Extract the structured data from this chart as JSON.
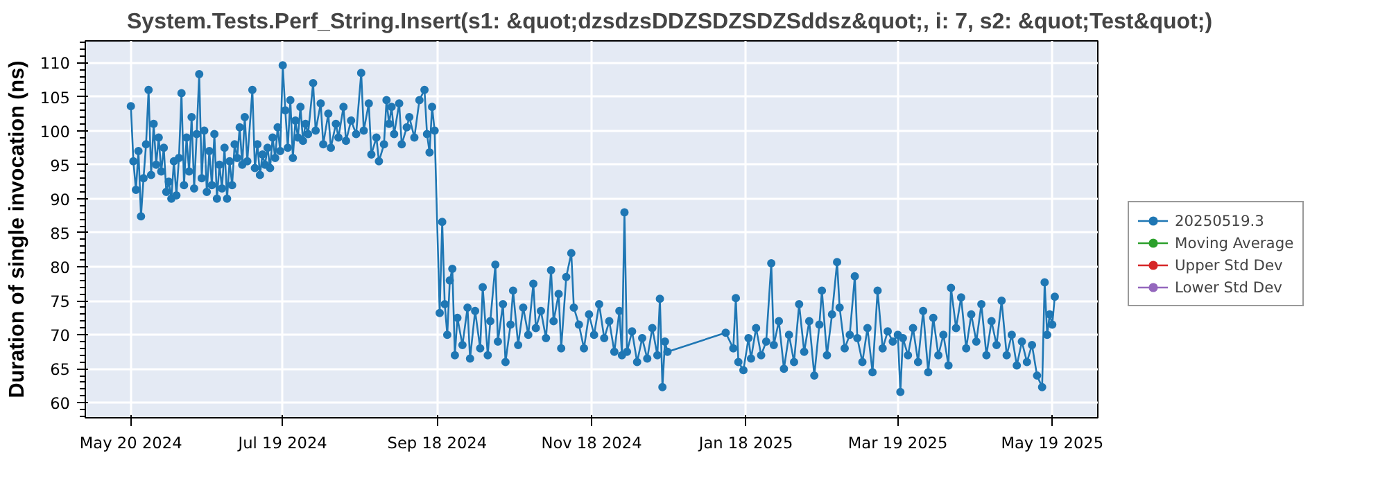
{
  "chart_data": {
    "type": "line",
    "title": "System.Tests.Perf_String.Insert(s1: &quot;dzsdzsDDZSDZSDZSddsz&quot;, i: 7, s2: &quot;Test&quot;)",
    "ylabel": "Duration of single invocation (ns)",
    "x": [
      "2024-05-20",
      "2024-05-21",
      "2024-05-22",
      "2024-05-23",
      "2024-05-24",
      "2024-05-25",
      "2024-05-26",
      "2024-05-27",
      "2024-05-28",
      "2024-05-29",
      "2024-05-30",
      "2024-05-31",
      "2024-06-01",
      "2024-06-02",
      "2024-06-03",
      "2024-06-04",
      "2024-06-05",
      "2024-06-06",
      "2024-06-07",
      "2024-06-08",
      "2024-06-09",
      "2024-06-10",
      "2024-06-11",
      "2024-06-12",
      "2024-06-13",
      "2024-06-14",
      "2024-06-15",
      "2024-06-16",
      "2024-06-17",
      "2024-06-18",
      "2024-06-19",
      "2024-06-20",
      "2024-06-21",
      "2024-06-22",
      "2024-06-23",
      "2024-06-24",
      "2024-06-25",
      "2024-06-26",
      "2024-06-27",
      "2024-06-28",
      "2024-06-29",
      "2024-06-30",
      "2024-07-01",
      "2024-07-02",
      "2024-07-03",
      "2024-07-04",
      "2024-07-05",
      "2024-07-07",
      "2024-07-08",
      "2024-07-09",
      "2024-07-10",
      "2024-07-11",
      "2024-07-12",
      "2024-07-13",
      "2024-07-14",
      "2024-07-15",
      "2024-07-16",
      "2024-07-17",
      "2024-07-18",
      "2024-07-19",
      "2024-07-20",
      "2024-07-21",
      "2024-07-22",
      "2024-07-23",
      "2024-07-24",
      "2024-07-25",
      "2024-07-26",
      "2024-07-27",
      "2024-07-28",
      "2024-07-29",
      "2024-07-31",
      "2024-08-01",
      "2024-08-03",
      "2024-08-04",
      "2024-08-06",
      "2024-08-07",
      "2024-08-09",
      "2024-08-10",
      "2024-08-12",
      "2024-08-13",
      "2024-08-15",
      "2024-08-17",
      "2024-08-19",
      "2024-08-20",
      "2024-08-22",
      "2024-08-23",
      "2024-08-25",
      "2024-08-26",
      "2024-08-28",
      "2024-08-29",
      "2024-08-30",
      "2024-08-31",
      "2024-09-01",
      "2024-09-03",
      "2024-09-04",
      "2024-09-06",
      "2024-09-07",
      "2024-09-09",
      "2024-09-11",
      "2024-09-13",
      "2024-09-14",
      "2024-09-15",
      "2024-09-16",
      "2024-09-17",
      "2024-09-19",
      "2024-09-20",
      "2024-09-21",
      "2024-09-22",
      "2024-09-23",
      "2024-09-24",
      "2024-09-25",
      "2024-09-26",
      "2024-09-28",
      "2024-09-30",
      "2024-10-01",
      "2024-10-03",
      "2024-10-05",
      "2024-10-06",
      "2024-10-08",
      "2024-10-09",
      "2024-10-11",
      "2024-10-12",
      "2024-10-14",
      "2024-10-15",
      "2024-10-17",
      "2024-10-18",
      "2024-10-20",
      "2024-10-22",
      "2024-10-24",
      "2024-10-26",
      "2024-10-27",
      "2024-10-29",
      "2024-10-31",
      "2024-11-02",
      "2024-11-03",
      "2024-11-05",
      "2024-11-06",
      "2024-11-08",
      "2024-11-10",
      "2024-11-11",
      "2024-11-13",
      "2024-11-15",
      "2024-11-17",
      "2024-11-19",
      "2024-11-21",
      "2024-11-23",
      "2024-11-25",
      "2024-11-27",
      "2024-11-29",
      "2024-11-30",
      "2024-12-01",
      "2024-12-02",
      "2024-12-04",
      "2024-12-06",
      "2024-12-08",
      "2024-12-10",
      "2024-12-12",
      "2024-12-14",
      "2024-12-15",
      "2024-12-16",
      "2024-12-17",
      "2024-12-18",
      "2025-01-10",
      "2025-01-13",
      "2025-01-14",
      "2025-01-15",
      "2025-01-17",
      "2025-01-19",
      "2025-01-20",
      "2025-01-22",
      "2025-01-24",
      "2025-01-26",
      "2025-01-28",
      "2025-01-29",
      "2025-01-31",
      "2025-02-02",
      "2025-02-04",
      "2025-02-06",
      "2025-02-08",
      "2025-02-10",
      "2025-02-12",
      "2025-02-14",
      "2025-02-16",
      "2025-02-17",
      "2025-02-19",
      "2025-02-21",
      "2025-02-23",
      "2025-02-24",
      "2025-02-26",
      "2025-02-28",
      "2025-03-02",
      "2025-03-03",
      "2025-03-05",
      "2025-03-07",
      "2025-03-09",
      "2025-03-11",
      "2025-03-13",
      "2025-03-15",
      "2025-03-17",
      "2025-03-19",
      "2025-03-20",
      "2025-03-21",
      "2025-03-23",
      "2025-03-25",
      "2025-03-27",
      "2025-03-29",
      "2025-03-31",
      "2025-04-02",
      "2025-04-04",
      "2025-04-06",
      "2025-04-08",
      "2025-04-09",
      "2025-04-11",
      "2025-04-13",
      "2025-04-15",
      "2025-04-17",
      "2025-04-19",
      "2025-04-21",
      "2025-04-23",
      "2025-04-25",
      "2025-04-27",
      "2025-04-29",
      "2025-05-01",
      "2025-05-03",
      "2025-05-05",
      "2025-05-07",
      "2025-05-09",
      "2025-05-11",
      "2025-05-13",
      "2025-05-15",
      "2025-05-16",
      "2025-05-17",
      "2025-05-18",
      "2025-05-19",
      "2025-05-20"
    ],
    "series": [
      {
        "name": "20250519.3",
        "color": "#1f77b4",
        "values": [
          103.6,
          95.5,
          91.3,
          97.0,
          87.4,
          93.0,
          98.0,
          106.0,
          93.5,
          101.0,
          95.0,
          99.0,
          94.0,
          97.5,
          91.0,
          92.5,
          90.0,
          95.5,
          90.5,
          96.0,
          105.5,
          92.0,
          99.0,
          94.0,
          102.0,
          91.5,
          99.5,
          108.3,
          93.0,
          100.0,
          91.0,
          97.0,
          92.0,
          99.5,
          90.0,
          95.0,
          91.5,
          97.5,
          90.0,
          95.5,
          92.0,
          98.0,
          96.0,
          100.5,
          95.0,
          102.0,
          95.5,
          106.0,
          94.5,
          98.0,
          93.5,
          96.5,
          95.0,
          97.5,
          94.5,
          99.0,
          96.0,
          100.5,
          97.0,
          109.6,
          103.0,
          97.5,
          104.5,
          96.0,
          101.5,
          99.0,
          103.5,
          98.5,
          101.0,
          99.5,
          107.0,
          100.0,
          104.0,
          98.0,
          102.5,
          97.5,
          101.0,
          99.0,
          103.5,
          98.5,
          101.5,
          99.5,
          108.5,
          100.0,
          104.0,
          96.5,
          99.0,
          95.5,
          98.0,
          104.5,
          101.0,
          103.5,
          99.5,
          104.0,
          98.0,
          100.5,
          102.0,
          99.0,
          104.5,
          106.0,
          99.5,
          96.8,
          103.5,
          100.0,
          73.2,
          86.6,
          74.5,
          70.0,
          78.0,
          79.7,
          67.0,
          72.5,
          68.5,
          74.0,
          66.5,
          73.5,
          68.0,
          77.0,
          67.0,
          72.0,
          80.3,
          69.0,
          74.5,
          66.0,
          71.5,
          76.5,
          68.5,
          74.0,
          70.0,
          77.5,
          71.0,
          73.5,
          69.5,
          79.5,
          72.0,
          76.0,
          68.0,
          78.5,
          82.0,
          74.0,
          71.5,
          68.0,
          73.0,
          70.0,
          74.5,
          69.5,
          72.0,
          67.5,
          73.5,
          67.0,
          88.0,
          67.5,
          70.5,
          66.0,
          69.5,
          66.5,
          71.0,
          67.0,
          75.3,
          62.3,
          69.0,
          67.5,
          70.3,
          68.0,
          75.4,
          66.0,
          64.8,
          69.5,
          66.5,
          71.0,
          67.0,
          69.0,
          80.5,
          68.5,
          72.0,
          65.0,
          70.0,
          66.0,
          74.5,
          67.5,
          72.0,
          64.0,
          71.5,
          76.5,
          67.0,
          73.0,
          80.7,
          74.0,
          68.0,
          70.0,
          78.6,
          69.5,
          66.0,
          71.0,
          64.5,
          76.5,
          68.0,
          70.5,
          69.0,
          70.0,
          61.6,
          69.5,
          67.0,
          71.0,
          66.0,
          73.5,
          64.5,
          72.5,
          67.0,
          70.0,
          65.5,
          76.9,
          71.0,
          75.5,
          68.0,
          73.0,
          69.0,
          74.5,
          67.0,
          72.0,
          68.5,
          75.0,
          67.0,
          70.0,
          65.5,
          69.0,
          66.0,
          68.5,
          64.0,
          62.3,
          77.7,
          70.0,
          73.0,
          71.5,
          75.6
        ]
      },
      {
        "name": "Moving Average",
        "color": "#2ca02c",
        "values": [
          null,
          null,
          null,
          null,
          null,
          null,
          null,
          null,
          null,
          null,
          null,
          null,
          null,
          null,
          null,
          null,
          null,
          null,
          null,
          null,
          null,
          null,
          null,
          null,
          null,
          null,
          null,
          null,
          null,
          null,
          null,
          null,
          null,
          null,
          null,
          null,
          null,
          null,
          null,
          null,
          null,
          null,
          null,
          null,
          null,
          null,
          null,
          null,
          null,
          null,
          null,
          null,
          null,
          null,
          null,
          null,
          null,
          null,
          null,
          null,
          null,
          null,
          null,
          null,
          null,
          null,
          null,
          null,
          null,
          null,
          null,
          null,
          null,
          null,
          null,
          null,
          null,
          null,
          null,
          null,
          null,
          null,
          null,
          null,
          null,
          null,
          null,
          null,
          null,
          null,
          null,
          null,
          null,
          null,
          null,
          null,
          null,
          null,
          null,
          null,
          null,
          null,
          null,
          null,
          null,
          null,
          null,
          null,
          null,
          null,
          null,
          null,
          null,
          null,
          null,
          null,
          null,
          null,
          null,
          null,
          null,
          null,
          null,
          null,
          null,
          null,
          null,
          null,
          null,
          null,
          null,
          null,
          null,
          null,
          null,
          null,
          null,
          null,
          null,
          null,
          null,
          null,
          null,
          null,
          null,
          null,
          null,
          null,
          null,
          null,
          null,
          null,
          null,
          null,
          null,
          null,
          null,
          null,
          null,
          null,
          null,
          null,
          null,
          null,
          null,
          null,
          null,
          null,
          null,
          null,
          null,
          null,
          null,
          null,
          null,
          null,
          null,
          null,
          null,
          null,
          null,
          null,
          null,
          null,
          null,
          null,
          null,
          null,
          null,
          null,
          null,
          null,
          null,
          null,
          null,
          null,
          null,
          null,
          null,
          null,
          null,
          null,
          null,
          null,
          null,
          null,
          null,
          null,
          null,
          null,
          null,
          null,
          null,
          null,
          null,
          null,
          null,
          null,
          null,
          null,
          null,
          null,
          null,
          null,
          null,
          null,
          null,
          null,
          null,
          null,
          null,
          null,
          null,
          null,
          null
        ]
      },
      {
        "name": "Upper Std Dev",
        "color": "#d62728",
        "values": [
          null,
          null,
          null,
          null,
          null,
          null,
          null,
          null,
          null,
          null,
          null,
          null,
          null,
          null,
          null,
          null,
          null,
          null,
          null,
          null,
          null,
          null,
          null,
          null,
          null,
          null,
          null,
          null,
          null,
          null,
          null,
          null,
          null,
          null,
          null,
          null,
          null,
          null,
          null,
          null,
          null,
          null,
          null,
          null,
          null,
          null,
          null,
          null,
          null,
          null,
          null,
          null,
          null,
          null,
          null,
          null,
          null,
          null,
          null,
          null,
          null,
          null,
          null,
          null,
          null,
          null,
          null,
          null,
          null,
          null,
          null,
          null,
          null,
          null,
          null,
          null,
          null,
          null,
          null,
          null,
          null,
          null,
          null,
          null,
          null,
          null,
          null,
          null,
          null,
          null,
          null,
          null,
          null,
          null,
          null,
          null,
          null,
          null,
          null,
          null,
          null,
          null,
          null,
          null,
          null,
          null,
          null,
          null,
          null,
          null,
          null,
          null,
          null,
          null,
          null,
          null,
          null,
          null,
          null,
          null,
          null,
          null,
          null,
          null,
          null,
          null,
          null,
          null,
          null,
          null,
          null,
          null,
          null,
          null,
          null,
          null,
          null,
          null,
          null,
          null,
          null,
          null,
          null,
          null,
          null,
          null,
          null,
          null,
          null,
          null,
          null,
          null,
          null,
          null,
          null,
          null,
          null,
          null,
          null,
          null,
          null,
          null,
          null,
          null,
          null,
          null,
          null,
          null,
          null,
          null,
          null,
          null,
          null,
          null,
          null,
          null,
          null,
          null,
          null,
          null,
          null,
          null,
          null,
          null,
          null,
          null,
          null,
          null,
          null,
          null,
          null,
          null,
          null,
          null,
          null,
          null,
          null,
          null,
          null,
          null,
          null,
          null,
          null,
          null,
          null,
          null,
          null,
          null,
          null,
          null,
          null,
          null,
          null,
          null,
          null,
          null,
          null,
          null,
          null,
          null,
          null,
          null,
          null,
          null,
          null,
          null,
          null,
          null,
          null,
          null,
          null,
          null,
          null,
          null,
          null
        ]
      },
      {
        "name": "Lower Std Dev",
        "color": "#9467bd",
        "values": [
          null,
          null,
          null,
          null,
          null,
          null,
          null,
          null,
          null,
          null,
          null,
          null,
          null,
          null,
          null,
          null,
          null,
          null,
          null,
          null,
          null,
          null,
          null,
          null,
          null,
          null,
          null,
          null,
          null,
          null,
          null,
          null,
          null,
          null,
          null,
          null,
          null,
          null,
          null,
          null,
          null,
          null,
          null,
          null,
          null,
          null,
          null,
          null,
          null,
          null,
          null,
          null,
          null,
          null,
          null,
          null,
          null,
          null,
          null,
          null,
          null,
          null,
          null,
          null,
          null,
          null,
          null,
          null,
          null,
          null,
          null,
          null,
          null,
          null,
          null,
          null,
          null,
          null,
          null,
          null,
          null,
          null,
          null,
          null,
          null,
          null,
          null,
          null,
          null,
          null,
          null,
          null,
          null,
          null,
          null,
          null,
          null,
          null,
          null,
          null,
          null,
          null,
          null,
          null,
          null,
          null,
          null,
          null,
          null,
          null,
          null,
          null,
          null,
          null,
          null,
          null,
          null,
          null,
          null,
          null,
          null,
          null,
          null,
          null,
          null,
          null,
          null,
          null,
          null,
          null,
          null,
          null,
          null,
          null,
          null,
          null,
          null,
          null,
          null,
          null,
          null,
          null,
          null,
          null,
          null,
          null,
          null,
          null,
          null,
          null,
          null,
          null,
          null,
          null,
          null,
          null,
          null,
          null,
          null,
          null,
          null,
          null,
          null,
          null,
          null,
          null,
          null,
          null,
          null,
          null,
          null,
          null,
          null,
          null,
          null,
          null,
          null,
          null,
          null,
          null,
          null,
          null,
          null,
          null,
          null,
          null,
          null,
          null,
          null,
          null,
          null,
          null,
          null,
          null,
          null,
          null,
          null,
          null,
          null,
          null,
          null,
          null,
          null,
          null,
          null,
          null,
          null,
          null,
          null,
          null,
          null,
          null,
          null,
          null,
          null,
          null,
          null,
          null,
          null,
          null,
          null,
          null,
          null,
          null,
          null,
          null,
          null,
          null,
          null,
          null,
          null,
          null,
          null,
          null,
          null
        ]
      }
    ],
    "xlim": [
      "2024-05-02",
      "2025-06-06"
    ],
    "xticks": [
      {
        "value": "2024-05-20",
        "label": "May 20 2024"
      },
      {
        "value": "2024-07-19",
        "label": "Jul 19 2024"
      },
      {
        "value": "2024-09-18",
        "label": "Sep 18 2024"
      },
      {
        "value": "2024-11-18",
        "label": "Nov 18 2024"
      },
      {
        "value": "2025-01-18",
        "label": "Jan 18 2025"
      },
      {
        "value": "2025-03-19",
        "label": "Mar 19 2025"
      },
      {
        "value": "2025-05-19",
        "label": "May 19 2025"
      }
    ],
    "ylim": [
      57.8,
      113.2
    ],
    "yticks": [
      60,
      65,
      70,
      75,
      80,
      85,
      90,
      95,
      100,
      105,
      110
    ],
    "grid": true,
    "legend": "right",
    "marker": "circle",
    "line_style": "solid"
  }
}
